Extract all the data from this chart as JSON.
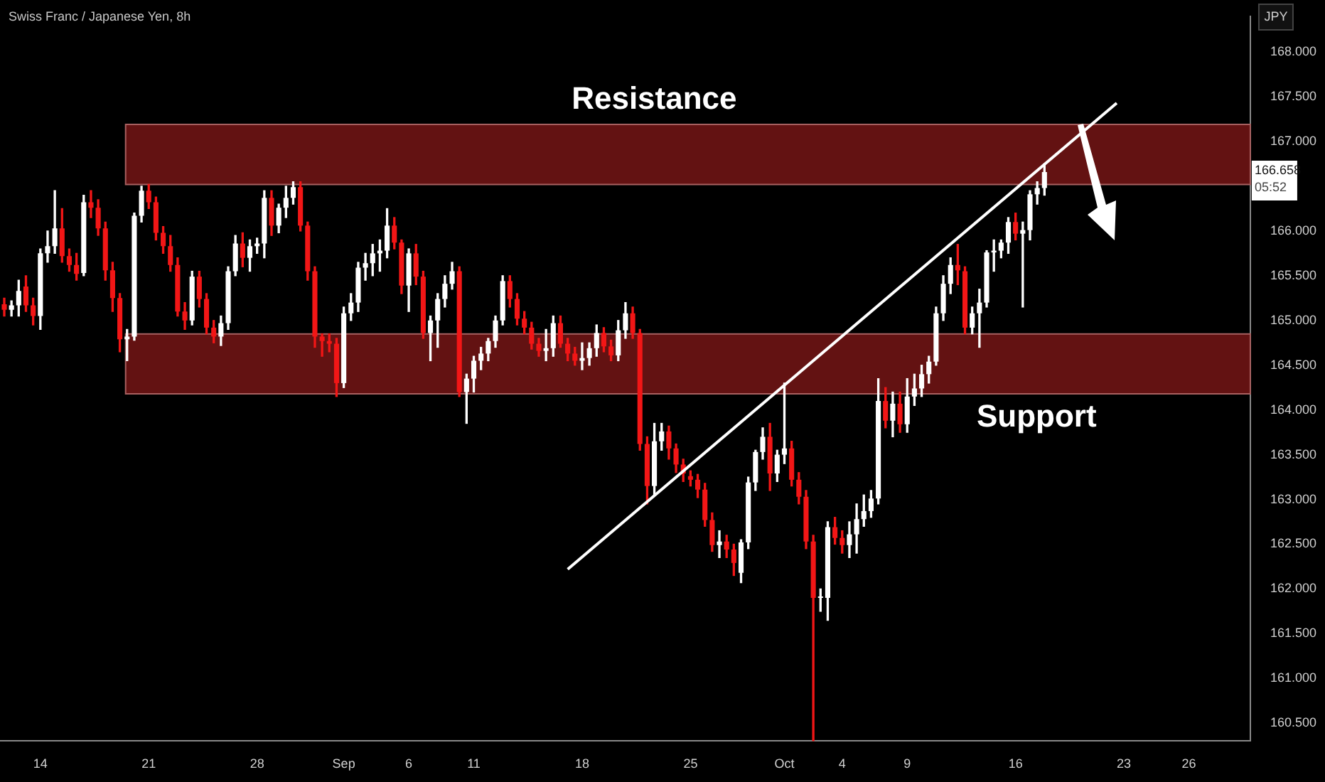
{
  "chart_data": {
    "type": "candlestick",
    "title": "Swiss Franc / Japanese Yen, 8h",
    "ylabel": "JPY",
    "categories": [
      null,
      null,
      null,
      null,
      null,
      "14",
      null,
      null,
      null,
      null,
      null,
      null,
      null,
      null,
      null,
      null,
      null,
      null,
      null,
      null,
      "21",
      null,
      null,
      null,
      null,
      null,
      null,
      null,
      null,
      null,
      null,
      null,
      null,
      null,
      null,
      "28",
      null,
      null,
      null,
      null,
      null,
      null,
      null,
      null,
      null,
      null,
      null,
      "Sep",
      null,
      null,
      null,
      null,
      null,
      null,
      null,
      null,
      "6",
      null,
      null,
      null,
      null,
      null,
      null,
      null,
      null,
      "11",
      null,
      null,
      null,
      null,
      null,
      null,
      null,
      null,
      null,
      null,
      null,
      null,
      null,
      null,
      "18",
      null,
      null,
      null,
      null,
      null,
      null,
      null,
      null,
      null,
      null,
      null,
      null,
      null,
      null,
      "25",
      null,
      null,
      null,
      null,
      null,
      null,
      null,
      null,
      null,
      null,
      null,
      null,
      "Oct",
      null,
      null,
      null,
      null,
      null,
      null,
      null,
      "4",
      null,
      null,
      null,
      null,
      null,
      null,
      null,
      null,
      "9",
      null,
      null,
      null,
      null,
      null,
      null,
      null,
      null,
      null,
      null,
      null,
      null,
      null,
      null,
      "16",
      null,
      null,
      null,
      null,
      null,
      null,
      null,
      null,
      null,
      null,
      null,
      null,
      null,
      null,
      "23",
      null,
      null,
      null,
      null,
      null,
      null,
      null,
      null,
      "26",
      null,
      null,
      null,
      null,
      null,
      null,
      null,
      null
    ],
    "ohlc": [
      [
        165.18,
        165.25,
        165.05,
        165.12
      ],
      [
        165.12,
        165.22,
        165.05,
        165.17
      ],
      [
        165.17,
        165.45,
        165.05,
        165.33
      ],
      [
        165.38,
        165.5,
        165.1,
        165.17
      ],
      [
        165.17,
        165.25,
        164.95,
        165.05
      ],
      [
        165.05,
        165.8,
        164.9,
        165.75
      ],
      [
        165.75,
        166.0,
        165.65,
        165.83
      ],
      [
        165.83,
        166.45,
        165.75,
        166.03
      ],
      [
        166.03,
        166.25,
        165.65,
        165.72
      ],
      [
        165.72,
        165.8,
        165.55,
        165.62
      ],
      [
        165.62,
        165.75,
        165.45,
        165.52
      ],
      [
        165.53,
        166.4,
        165.5,
        166.32
      ],
      [
        166.32,
        166.45,
        166.15,
        166.26
      ],
      [
        166.26,
        166.35,
        165.95,
        166.03
      ],
      [
        166.03,
        166.1,
        165.45,
        165.56
      ],
      [
        165.56,
        165.65,
        165.1,
        165.25
      ],
      [
        165.25,
        165.3,
        164.65,
        164.79
      ],
      [
        164.79,
        164.9,
        164.55,
        164.82
      ],
      [
        164.82,
        166.2,
        164.78,
        166.17
      ],
      [
        166.17,
        166.5,
        166.1,
        166.45
      ],
      [
        166.45,
        166.52,
        166.25,
        166.32
      ],
      [
        166.32,
        166.38,
        165.9,
        165.98
      ],
      [
        165.98,
        166.05,
        165.75,
        165.83
      ],
      [
        165.83,
        165.95,
        165.55,
        165.62
      ],
      [
        165.62,
        165.7,
        165.05,
        165.1
      ],
      [
        165.1,
        165.2,
        164.9,
        165.0
      ],
      [
        165.0,
        165.55,
        164.95,
        165.49
      ],
      [
        165.49,
        165.55,
        165.15,
        165.24
      ],
      [
        165.24,
        165.3,
        164.85,
        164.92
      ],
      [
        164.92,
        165.0,
        164.75,
        164.82
      ],
      [
        164.82,
        165.05,
        164.72,
        164.97
      ],
      [
        164.97,
        165.6,
        164.9,
        165.55
      ],
      [
        165.55,
        165.95,
        165.5,
        165.86
      ],
      [
        165.86,
        165.98,
        165.6,
        165.7
      ],
      [
        165.7,
        165.9,
        165.55,
        165.83
      ],
      [
        165.83,
        165.92,
        165.75,
        165.86
      ],
      [
        165.86,
        166.45,
        165.7,
        166.37
      ],
      [
        166.37,
        166.45,
        165.95,
        166.06
      ],
      [
        166.06,
        166.3,
        165.98,
        166.26
      ],
      [
        166.26,
        166.5,
        166.15,
        166.37
      ],
      [
        166.37,
        166.55,
        166.3,
        166.49
      ],
      [
        166.49,
        166.55,
        166.0,
        166.06
      ],
      [
        166.06,
        166.1,
        165.45,
        165.55
      ],
      [
        165.55,
        165.6,
        164.7,
        164.82
      ],
      [
        164.82,
        164.85,
        164.6,
        164.77
      ],
      [
        164.77,
        164.85,
        164.65,
        164.74
      ],
      [
        164.74,
        164.8,
        164.15,
        164.3
      ],
      [
        164.3,
        165.15,
        164.25,
        165.08
      ],
      [
        165.08,
        165.3,
        165.0,
        165.2
      ],
      [
        165.2,
        165.65,
        165.1,
        165.59
      ],
      [
        165.59,
        165.75,
        165.45,
        165.64
      ],
      [
        165.64,
        165.85,
        165.5,
        165.75
      ],
      [
        165.75,
        165.9,
        165.55,
        165.78
      ],
      [
        165.78,
        166.25,
        165.7,
        166.06
      ],
      [
        166.06,
        166.15,
        165.8,
        165.87
      ],
      [
        165.87,
        165.9,
        165.3,
        165.39
      ],
      [
        165.39,
        165.8,
        165.1,
        165.75
      ],
      [
        165.75,
        165.85,
        165.4,
        165.49
      ],
      [
        165.49,
        165.55,
        164.8,
        164.86
      ],
      [
        164.86,
        165.05,
        164.55,
        165.0
      ],
      [
        165.0,
        165.3,
        164.7,
        165.24
      ],
      [
        165.24,
        165.5,
        165.15,
        165.41
      ],
      [
        165.41,
        165.65,
        165.35,
        165.55
      ],
      [
        165.55,
        165.6,
        164.15,
        164.2
      ],
      [
        164.2,
        164.4,
        163.85,
        164.35
      ],
      [
        164.35,
        164.6,
        164.2,
        164.55
      ],
      [
        164.55,
        164.7,
        164.45,
        164.63
      ],
      [
        164.63,
        164.8,
        164.55,
        164.77
      ],
      [
        164.77,
        165.05,
        164.7,
        165.0
      ],
      [
        165.0,
        165.5,
        164.95,
        165.44
      ],
      [
        165.44,
        165.5,
        165.15,
        165.24
      ],
      [
        165.24,
        165.3,
        164.95,
        165.02
      ],
      [
        165.02,
        165.1,
        164.85,
        164.92
      ],
      [
        164.92,
        164.98,
        164.68,
        164.74
      ],
      [
        164.74,
        164.8,
        164.6,
        164.66
      ],
      [
        164.66,
        164.9,
        164.55,
        164.69
      ],
      [
        164.69,
        165.05,
        164.6,
        164.97
      ],
      [
        164.97,
        165.05,
        164.7,
        164.74
      ],
      [
        164.74,
        164.8,
        164.55,
        164.63
      ],
      [
        164.63,
        164.7,
        164.5,
        164.55
      ],
      [
        164.55,
        164.75,
        164.45,
        164.58
      ],
      [
        164.58,
        164.75,
        164.5,
        164.69
      ],
      [
        164.69,
        164.95,
        164.6,
        164.86
      ],
      [
        164.86,
        164.92,
        164.65,
        164.71
      ],
      [
        164.71,
        164.78,
        164.55,
        164.61
      ],
      [
        164.61,
        165.0,
        164.55,
        164.89
      ],
      [
        164.89,
        165.2,
        164.8,
        165.08
      ],
      [
        165.08,
        165.15,
        164.8,
        164.86
      ],
      [
        164.86,
        164.9,
        163.55,
        163.62
      ],
      [
        163.62,
        163.7,
        162.95,
        163.15
      ],
      [
        163.15,
        163.85,
        163.05,
        163.65
      ],
      [
        163.65,
        163.85,
        163.55,
        163.76
      ],
      [
        163.76,
        163.82,
        163.45,
        163.57
      ],
      [
        163.57,
        163.62,
        163.3,
        163.39
      ],
      [
        163.39,
        163.45,
        163.2,
        163.29
      ],
      [
        163.26,
        163.32,
        163.15,
        163.22
      ],
      [
        163.22,
        163.28,
        163.02,
        163.11
      ],
      [
        163.11,
        163.18,
        162.7,
        162.77
      ],
      [
        162.77,
        162.85,
        162.42,
        162.49
      ],
      [
        162.49,
        162.65,
        162.35,
        162.53
      ],
      [
        162.53,
        162.6,
        162.35,
        162.44
      ],
      [
        162.44,
        162.5,
        162.15,
        162.29
      ],
      [
        162.18,
        162.55,
        162.07,
        162.52
      ],
      [
        162.52,
        163.25,
        162.45,
        163.19
      ],
      [
        163.19,
        163.55,
        163.1,
        163.53
      ],
      [
        163.53,
        163.8,
        163.45,
        163.7
      ],
      [
        163.7,
        163.85,
        163.1,
        163.29
      ],
      [
        163.29,
        163.55,
        163.2,
        163.5
      ],
      [
        163.5,
        164.3,
        163.4,
        163.57
      ],
      [
        163.57,
        163.65,
        163.15,
        163.22
      ],
      [
        163.22,
        163.3,
        162.95,
        163.03
      ],
      [
        163.03,
        163.1,
        162.45,
        162.53
      ],
      [
        162.53,
        162.6,
        160.3,
        161.9
      ],
      [
        161.9,
        162.0,
        161.75,
        161.91
      ],
      [
        161.9,
        162.75,
        161.65,
        162.69
      ],
      [
        162.69,
        162.8,
        162.5,
        162.57
      ],
      [
        162.57,
        162.65,
        162.4,
        162.49
      ],
      [
        162.49,
        162.75,
        162.35,
        162.61
      ],
      [
        162.61,
        162.95,
        162.4,
        162.78
      ],
      [
        162.78,
        163.05,
        162.7,
        162.87
      ],
      [
        162.87,
        163.1,
        162.8,
        163.01
      ],
      [
        163.01,
        164.35,
        162.95,
        164.1
      ],
      [
        164.1,
        164.25,
        163.8,
        163.88
      ],
      [
        163.88,
        164.2,
        163.7,
        164.07
      ],
      [
        164.07,
        164.2,
        163.75,
        163.84
      ],
      [
        163.84,
        164.35,
        163.75,
        164.15
      ],
      [
        164.15,
        164.4,
        164.05,
        164.24
      ],
      [
        164.24,
        164.5,
        164.15,
        164.4
      ],
      [
        164.4,
        164.6,
        164.3,
        164.54
      ],
      [
        164.54,
        165.15,
        164.5,
        165.08
      ],
      [
        165.08,
        165.5,
        165.0,
        165.41
      ],
      [
        165.41,
        165.7,
        165.3,
        165.62
      ],
      [
        165.62,
        165.85,
        165.4,
        165.56
      ],
      [
        165.55,
        165.6,
        164.85,
        164.92
      ],
      [
        164.92,
        165.15,
        164.85,
        165.08
      ],
      [
        165.08,
        165.35,
        164.7,
        165.2
      ],
      [
        165.2,
        165.78,
        165.15,
        165.76
      ],
      [
        165.76,
        165.9,
        165.55,
        165.78
      ],
      [
        165.78,
        165.9,
        165.7,
        165.87
      ],
      [
        165.87,
        166.15,
        165.75,
        166.1
      ],
      [
        166.1,
        166.2,
        165.9,
        165.97
      ],
      [
        165.97,
        166.1,
        165.15,
        166.01
      ],
      [
        166.01,
        166.45,
        165.9,
        166.41
      ],
      [
        166.41,
        166.55,
        166.3,
        166.48
      ],
      [
        166.48,
        166.75,
        166.4,
        166.658
      ],
      null,
      null,
      null,
      null,
      null,
      null,
      null,
      null,
      null,
      null,
      null,
      null,
      null,
      null,
      null,
      null,
      null,
      null,
      null,
      null,
      null,
      null,
      null,
      null,
      null,
      null,
      null,
      null
    ],
    "colors": [
      "#f21616",
      "#ffffff",
      "#ffffff",
      "#f21616",
      "#f21616",
      "#ffffff",
      "#ffffff",
      "#ffffff",
      "#f21616",
      "#f21616",
      "#f21616",
      "#ffffff",
      "#f21616",
      "#f21616",
      "#f21616",
      "#f21616",
      "#f21616",
      "#ffffff",
      "#ffffff",
      "#ffffff",
      "#f21616",
      "#f21616",
      "#f21616",
      "#f21616",
      "#f21616",
      "#f21616",
      "#ffffff",
      "#f21616",
      "#f21616",
      "#f21616",
      "#ffffff",
      "#ffffff",
      "#ffffff",
      "#f21616",
      "#ffffff",
      "#ffffff",
      "#ffffff",
      "#f21616",
      "#ffffff",
      "#ffffff",
      "#ffffff",
      "#f21616",
      "#f21616",
      "#f21616",
      "#f21616",
      "#f21616",
      "#f21616",
      "#ffffff",
      "#ffffff",
      "#ffffff",
      "#ffffff",
      "#ffffff",
      "#ffffff",
      "#ffffff",
      "#f21616",
      "#f21616",
      "#ffffff",
      "#f21616",
      "#f21616",
      "#ffffff",
      "#ffffff",
      "#ffffff",
      "#ffffff",
      "#f21616",
      "#ffffff",
      "#ffffff",
      "#ffffff",
      "#ffffff",
      "#ffffff",
      "#ffffff",
      "#f21616",
      "#f21616",
      "#f21616",
      "#f21616",
      "#f21616",
      "#ffffff",
      "#ffffff",
      "#f21616",
      "#f21616",
      "#f21616",
      "#ffffff",
      "#ffffff",
      "#ffffff",
      "#f21616",
      "#f21616",
      "#ffffff",
      "#ffffff",
      "#f21616",
      "#f21616",
      "#f21616",
      "#ffffff",
      "#ffffff",
      "#f21616",
      "#f21616",
      "#f21616",
      "#f21616",
      "#f21616",
      "#f21616",
      "#f21616",
      "#ffffff",
      "#f21616",
      "#f21616",
      "#ffffff",
      "#ffffff",
      "#ffffff",
      "#ffffff",
      "#f21616",
      "#ffffff",
      "#ffffff",
      "#f21616",
      "#f21616",
      "#f21616",
      "#f21616",
      "#ffffff",
      "#ffffff",
      "#f21616",
      "#f21616",
      "#ffffff",
      "#ffffff",
      "#ffffff",
      "#ffffff",
      "#ffffff",
      "#f21616",
      "#ffffff",
      "#f21616",
      "#ffffff",
      "#ffffff",
      "#ffffff",
      "#ffffff",
      "#ffffff",
      "#ffffff",
      "#ffffff",
      "#f21616",
      "#f21616",
      "#ffffff",
      "#ffffff",
      "#ffffff",
      "#ffffff",
      "#ffffff",
      "#ffffff",
      "#f21616",
      "#ffffff",
      "#ffffff",
      "#ffffff",
      "#ffffff",
      null,
      null,
      null,
      null,
      null,
      null,
      null,
      null,
      null,
      null,
      null,
      null,
      null,
      null,
      null,
      null,
      null,
      null,
      null,
      null,
      null,
      null,
      null,
      null,
      null,
      null,
      null,
      null
    ],
    "series": [
      {
        "type": "line",
        "color": "#ffffff",
        "values": [
          null,
          null,
          null,
          null,
          null,
          null,
          null,
          null,
          null,
          null,
          null,
          null,
          null,
          null,
          null,
          null,
          null,
          null,
          null,
          null,
          null,
          null,
          null,
          null,
          null,
          null,
          null,
          null,
          null,
          null,
          null,
          null,
          null,
          null,
          null,
          null,
          null,
          null,
          null,
          null,
          null,
          null,
          null,
          null,
          null,
          null,
          null,
          null,
          null,
          null,
          null,
          null,
          null,
          null,
          null,
          null,
          null,
          null,
          null,
          null,
          null,
          null,
          null,
          null,
          null,
          null,
          null,
          null,
          null,
          null,
          null,
          null,
          null,
          null,
          null,
          null,
          null,
          null,
          162.22,
          null,
          null,
          null,
          null,
          null,
          null,
          null,
          null,
          null,
          null,
          null,
          null,
          null,
          null,
          null,
          null,
          null,
          null,
          null,
          null,
          null,
          null,
          null,
          null,
          null,
          null,
          null,
          null,
          null,
          null,
          null,
          null,
          null,
          null,
          null,
          null,
          null,
          null,
          null,
          null,
          null,
          null,
          null,
          null,
          null,
          null,
          null,
          null,
          null,
          null,
          null,
          null,
          null,
          null,
          null,
          null,
          null,
          null,
          null,
          null,
          null,
          null,
          null,
          null,
          null,
          null,
          null,
          null,
          null,
          null,
          null,
          null,
          null,
          null,
          null,
          167.43,
          null,
          null,
          null,
          null,
          null,
          null,
          null,
          null,
          null,
          null,
          null,
          null,
          null,
          null,
          null,
          null,
          null,
          null
        ]
      }
    ],
    "ylim": [
      160.3,
      168.4
    ],
    "yticks": [
      {
        "value": 160.5,
        "label": "160.500"
      },
      {
        "value": 161,
        "label": "161.000"
      },
      {
        "value": 161.5,
        "label": "161.500"
      },
      {
        "value": 162,
        "label": "162.000"
      },
      {
        "value": 162.5,
        "label": "162.500"
      },
      {
        "value": 163,
        "label": "163.000"
      },
      {
        "value": 163.5,
        "label": "163.500"
      },
      {
        "value": 164,
        "label": "164.000"
      },
      {
        "value": 164.5,
        "label": "164.500"
      },
      {
        "value": 165,
        "label": "165.000"
      },
      {
        "value": 165.5,
        "label": "165.500"
      },
      {
        "value": 166,
        "label": "166.000"
      },
      {
        "value": 167,
        "label": "167.000"
      },
      {
        "value": 167.5,
        "label": "167.500"
      },
      {
        "value": 168,
        "label": "168.000"
      }
    ],
    "bands": [
      {
        "axis": "y",
        "from": 166.52,
        "to": 167.19,
        "label": "Resistance",
        "color": "#6e1414"
      },
      {
        "axis": "y",
        "from": 164.18,
        "to": 164.85,
        "label": "Support",
        "color": "#6e1414"
      }
    ],
    "annotations": [
      "166.658",
      "05:52"
    ],
    "marker": "none",
    "grid": false,
    "legend": false
  }
}
